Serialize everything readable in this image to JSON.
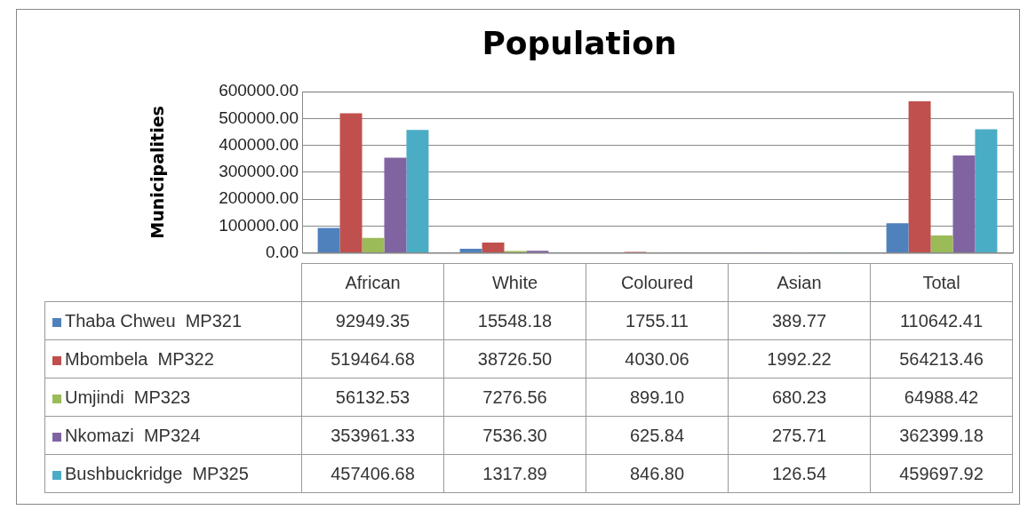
{
  "chart_data": {
    "type": "bar",
    "title": "Population",
    "ylabel": "Municipalities",
    "categories": [
      "African",
      "White",
      "Coloured",
      "Asian",
      "Total"
    ],
    "series": [
      {
        "name": "Thaba Chweu  MP321",
        "color": "#4f81bd",
        "values": [
          92949.35,
          15548.18,
          1755.11,
          389.77,
          110642.41
        ],
        "value_labels": [
          "92949.35",
          "15548.18",
          "1755.11",
          "389.77",
          "110642.41"
        ]
      },
      {
        "name": "Mbombela  MP322",
        "color": "#c0504d",
        "values": [
          519464.68,
          38726.5,
          4030.06,
          1992.22,
          564213.46
        ],
        "value_labels": [
          "519464.68",
          "38726.50",
          "4030.06",
          "1992.22",
          "564213.46"
        ]
      },
      {
        "name": "Umjindi  MP323",
        "color": "#9bbb59",
        "values": [
          56132.53,
          7276.56,
          899.1,
          680.23,
          64988.42
        ],
        "value_labels": [
          "56132.53",
          "7276.56",
          "899.10",
          "680.23",
          "64988.42"
        ]
      },
      {
        "name": "Nkomazi  MP324",
        "color": "#8064a2",
        "values": [
          353961.33,
          7536.3,
          625.84,
          275.71,
          362399.18
        ],
        "value_labels": [
          "353961.33",
          "7536.30",
          "625.84",
          "275.71",
          "362399.18"
        ]
      },
      {
        "name": "Bushbuckridge  MP325",
        "color": "#4bacc6",
        "values": [
          457406.68,
          1317.89,
          846.8,
          126.54,
          459697.92
        ],
        "value_labels": [
          "457406.68",
          "1317.89",
          "846.80",
          "126.54",
          "459697.92"
        ]
      }
    ],
    "ylim": [
      0,
      600000
    ],
    "yticks": [
      {
        "value": 0,
        "label": "0.00"
      },
      {
        "value": 100000,
        "label": "100000.00"
      },
      {
        "value": 200000,
        "label": "200000.00"
      },
      {
        "value": 300000,
        "label": "300000.00"
      },
      {
        "value": 400000,
        "label": "400000.00"
      },
      {
        "value": 500000,
        "label": "500000.00"
      },
      {
        "value": 600000,
        "label": "600000.00"
      }
    ],
    "grid": "y",
    "legend": "bottom"
  }
}
